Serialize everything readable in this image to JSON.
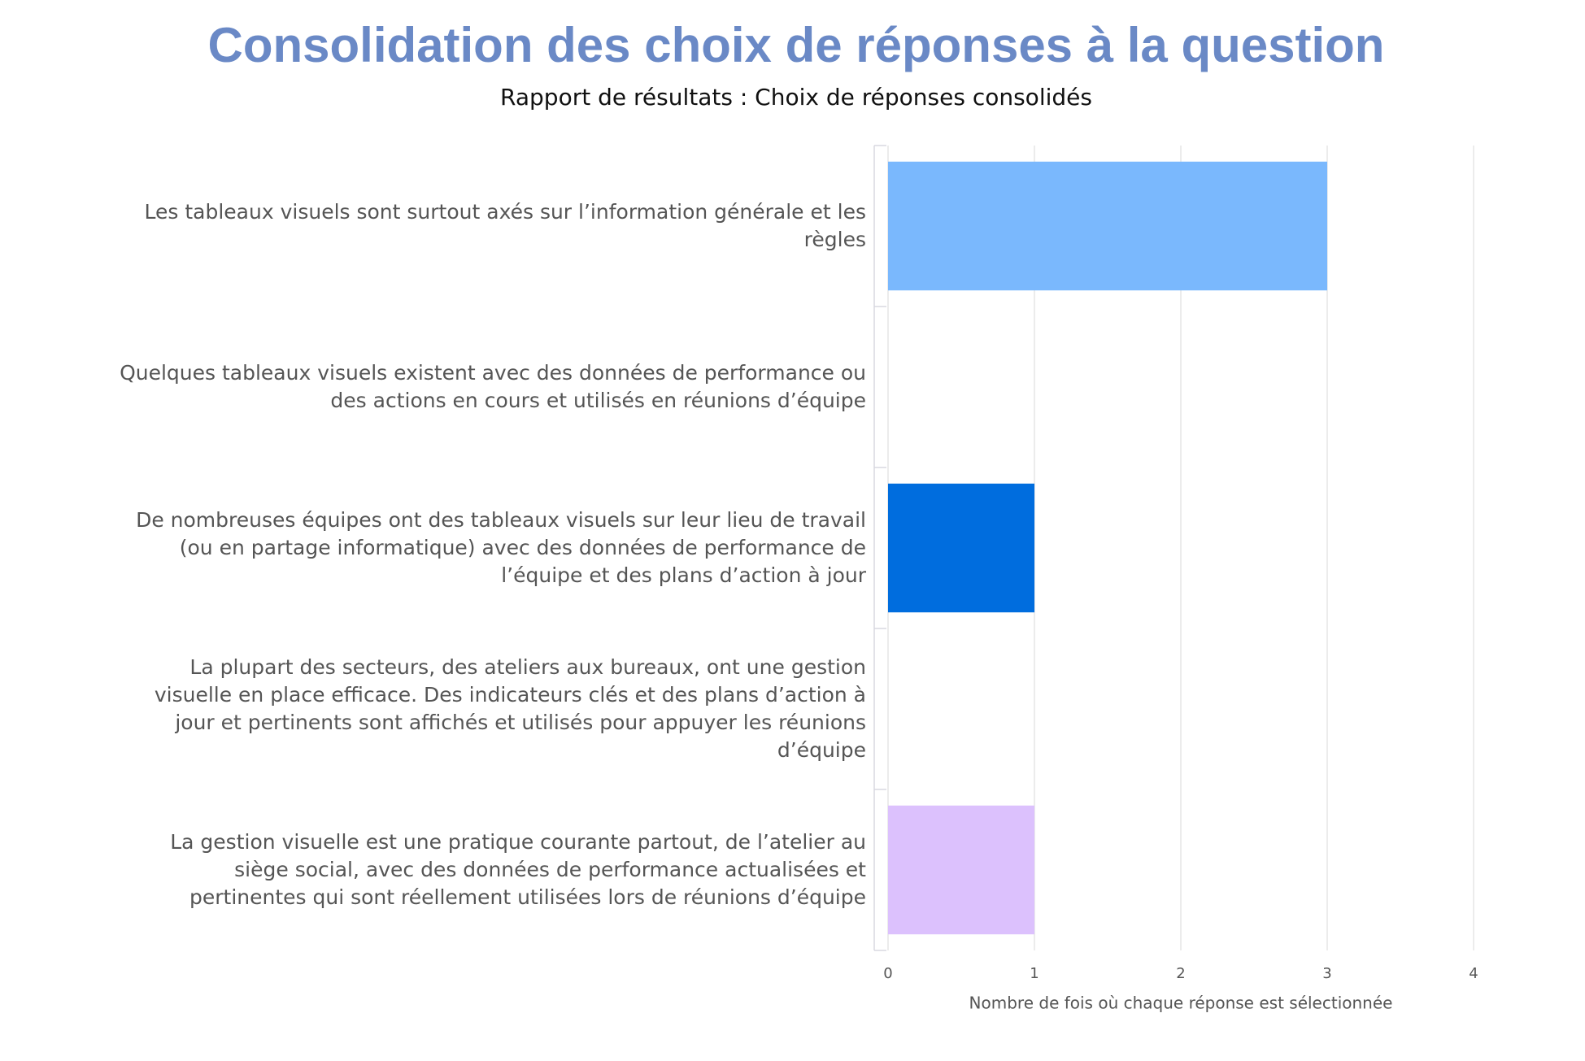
{
  "chart_data": {
    "type": "bar",
    "orientation": "horizontal",
    "title": "Consolidation des choix de réponses à la question",
    "subtitle": "Rapport de résultats : Choix de réponses consolidés",
    "x_label": "Nombre de fois où chaque réponse est sélectionnée",
    "categories": [
      "Les tableaux visuels sont surtout axés sur l’information générale et les règles",
      "Quelques tableaux visuels existent avec des données de performance ou des actions en cours et utilisés en réunions d’équipe",
      "De nombreuses équipes ont des tableaux visuels sur leur lieu de travail (ou en partage informatique) avec des données de performance de l’équipe et des plans d’action à jour",
      "La plupart des secteurs, des ateliers aux bureaux, ont une gestion visuelle en place efficace. Des indicateurs clés et des plans d’action à jour et pertinents sont affichés et utilisés pour appuyer les réunions d’équipe",
      "La gestion visuelle est une pratique courante partout, de l’atelier au siège social, avec des données de performance actualisées et pertinentes qui sont réellement utilisées lors de réunions d’équipe"
    ],
    "values": [
      3,
      0,
      1,
      0,
      1
    ],
    "colors": [
      "#7ab8fd",
      "#7ab8fd",
      "#006dde",
      "#8fa8f5",
      "#dcc1fd"
    ],
    "xlim": [
      0,
      4
    ],
    "xticks": [
      0,
      1,
      2,
      3,
      4
    ],
    "grid": true
  }
}
